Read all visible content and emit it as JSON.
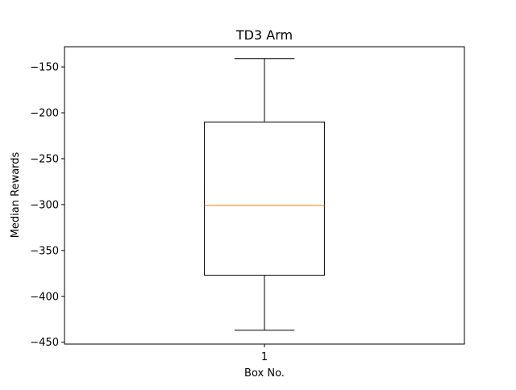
{
  "chart_data": {
    "type": "boxplot",
    "title": "TD3 Arm",
    "xlabel": "Box No.",
    "ylabel": "Median Rewards",
    "categories": [
      "1"
    ],
    "ylim": [
      -452,
      -128
    ],
    "yticks": [
      -150,
      -200,
      -250,
      -300,
      -350,
      -400,
      -450
    ],
    "ytick_labels": [
      "−150",
      "−200",
      "−250",
      "−300",
      "−350",
      "−400",
      "−450"
    ],
    "boxes": [
      {
        "label": "1",
        "whisker_high": -141,
        "q3": -210,
        "median": -301,
        "q1": -377,
        "whisker_low": -437
      }
    ],
    "grid": false,
    "colors": {
      "box": "#000000",
      "median": "#ff7f0e",
      "axes": "#000000"
    }
  }
}
